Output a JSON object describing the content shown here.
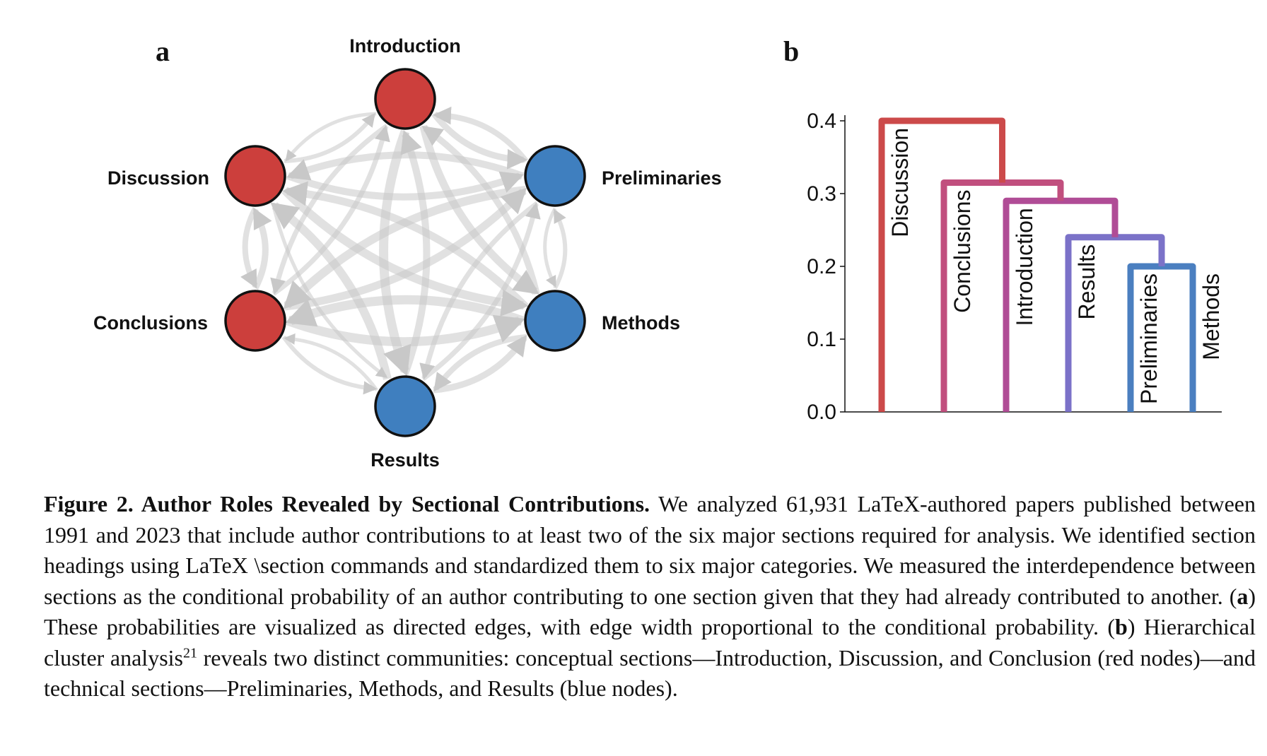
{
  "panel_a": {
    "letter": "a",
    "nodes": [
      {
        "name": "Introduction",
        "community": "conceptual",
        "color": "#cc3f3c"
      },
      {
        "name": "Discussion",
        "community": "conceptual",
        "color": "#cc3f3c"
      },
      {
        "name": "Conclusions",
        "community": "conceptual",
        "color": "#cc3f3c"
      },
      {
        "name": "Preliminaries",
        "community": "technical",
        "color": "#3f7fbf"
      },
      {
        "name": "Methods",
        "community": "technical",
        "color": "#3f7fbf"
      },
      {
        "name": "Results",
        "community": "technical",
        "color": "#3f7fbf"
      }
    ],
    "edge_color": "#c8c8c8"
  },
  "panel_b": {
    "letter": "b",
    "chart_data": {
      "type": "dendrogram",
      "leaves": [
        "Discussion",
        "Conclusions",
        "Introduction",
        "Results",
        "Preliminaries",
        "Methods"
      ],
      "y_ticks": [
        "0.0",
        "0.1",
        "0.2",
        "0.3",
        "0.4"
      ],
      "ylim": [
        0,
        0.4
      ],
      "merges": [
        {
          "left": "Preliminaries",
          "right": "Methods",
          "height": 0.2,
          "color": "#4b7fc0"
        },
        {
          "left": "Results",
          "right": "Preliminaries+Methods",
          "height": 0.24,
          "color": "#7b72c8"
        },
        {
          "left": "Introduction",
          "right": "Results+Preliminaries+Methods",
          "height": 0.29,
          "color": "#b04c96"
        },
        {
          "left": "Conclusions",
          "right": "Introduction+Results+Preliminaries+Methods",
          "height": 0.315,
          "color": "#c14f7e"
        },
        {
          "left": "Discussion",
          "right": "Conclusions+Introduction+Results+Preliminaries+Methods",
          "height": 0.4,
          "color": "#cc4a4a"
        }
      ]
    }
  },
  "caption": {
    "label": "Figure 2. Author Roles Revealed by Sectional Contributions.",
    "part1": " We analyzed 61,931 LaTeX-authored papers published between 1991 and 2023 that include author contributions to at least two of the six major sections required for analysis. We identified section headings using LaTeX \\section commands and standardized them to six major categories. We measured the interdependence between sections as the conditional probability of an author contributing to one section given that they had already contributed to another. (",
    "a": "a",
    "part2": ") These probabilities are visualized as directed edges, with edge width proportional to the conditional probability. (",
    "b": "b",
    "part3": ") Hierarchical cluster analysis",
    "ref": "21",
    "part4": " reveals two distinct communities: conceptual sections—Introduction, Discussion, and Conclusion (red nodes)—and technical sections—Preliminaries, Methods, and Results (blue nodes)."
  }
}
